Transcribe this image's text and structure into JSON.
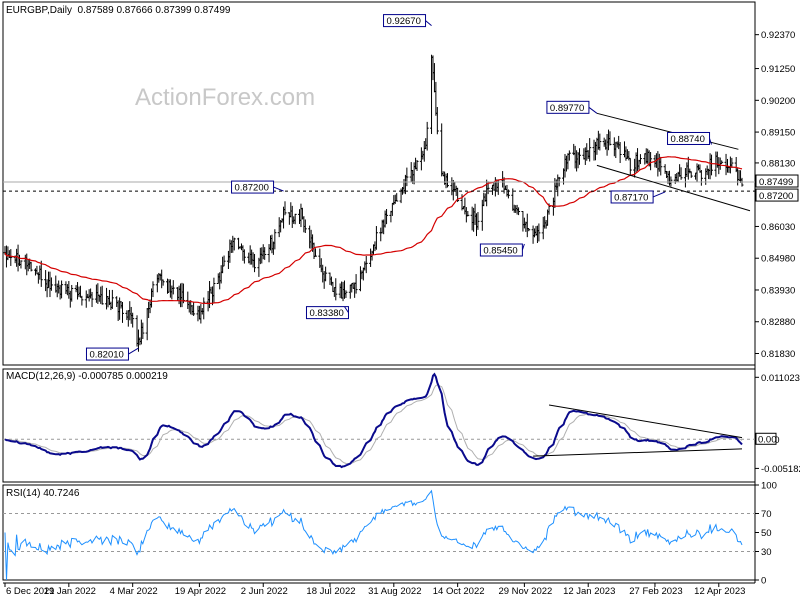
{
  "chart_data": [
    {
      "type": "candlestick",
      "title": "EURGBP,Daily",
      "ohlc_header": "0.87589 0.87666 0.87399 0.87499",
      "watermark": "ActionForex.com",
      "ylim": [
        0.8145,
        0.9345
      ],
      "y_ticks": [
        "0.92370",
        "0.91250",
        "0.90200",
        "0.89150",
        "0.88130",
        "0.87080",
        "0.86030",
        "0.84980",
        "0.83930",
        "0.82880",
        "0.81830"
      ],
      "x_ticks": [
        "6 Dec 2021",
        "19 Jan 2022",
        "4 Mar 2022",
        "19 Apr 2022",
        "2 Jun 2022",
        "18 Jul 2022",
        "31 Aug 2022",
        "14 Oct 2022",
        "29 Nov 2022",
        "12 Jan 2023",
        "27 Feb 2023",
        "12 Apr 2023"
      ],
      "current_price": "0.87499",
      "horizontal_level": "0.87200",
      "price_path": [
        {
          "date": "2021-12-06",
          "close": 0.852
        },
        {
          "date": "2021-12-20",
          "close": 0.849
        },
        {
          "date": "2022-01-05",
          "close": 0.841
        },
        {
          "date": "2022-01-19",
          "close": 0.838
        },
        {
          "date": "2022-02-01",
          "close": 0.838
        },
        {
          "date": "2022-02-15",
          "close": 0.836
        },
        {
          "date": "2022-03-01",
          "close": 0.832
        },
        {
          "date": "2022-03-08",
          "close": 0.822
        },
        {
          "date": "2022-03-20",
          "close": 0.843
        },
        {
          "date": "2022-04-05",
          "close": 0.838
        },
        {
          "date": "2022-04-19",
          "close": 0.831
        },
        {
          "date": "2022-05-01",
          "close": 0.842
        },
        {
          "date": "2022-05-12",
          "close": 0.856
        },
        {
          "date": "2022-05-26",
          "close": 0.848
        },
        {
          "date": "2022-06-08",
          "close": 0.855
        },
        {
          "date": "2022-06-16",
          "close": 0.864
        },
        {
          "date": "2022-06-28",
          "close": 0.864
        },
        {
          "date": "2022-07-10",
          "close": 0.848
        },
        {
          "date": "2022-07-20",
          "close": 0.839
        },
        {
          "date": "2022-07-28",
          "close": 0.838
        },
        {
          "date": "2022-08-08",
          "close": 0.843
        },
        {
          "date": "2022-08-18",
          "close": 0.855
        },
        {
          "date": "2022-08-26",
          "close": 0.865
        },
        {
          "date": "2022-09-05",
          "close": 0.872
        },
        {
          "date": "2022-09-22",
          "close": 0.886
        },
        {
          "date": "2022-09-26",
          "close": 0.915
        },
        {
          "date": "2022-10-03",
          "close": 0.877
        },
        {
          "date": "2022-10-12",
          "close": 0.872
        },
        {
          "date": "2022-10-20",
          "close": 0.866
        },
        {
          "date": "2022-10-27",
          "close": 0.862
        },
        {
          "date": "2022-11-05",
          "close": 0.874
        },
        {
          "date": "2022-11-15",
          "close": 0.874
        },
        {
          "date": "2022-11-22",
          "close": 0.866
        },
        {
          "date": "2022-11-29",
          "close": 0.862
        },
        {
          "date": "2022-12-05",
          "close": 0.858
        },
        {
          "date": "2022-12-12",
          "close": 0.86
        },
        {
          "date": "2022-12-20",
          "close": 0.872
        },
        {
          "date": "2022-12-30",
          "close": 0.884
        },
        {
          "date": "2023-01-10",
          "close": 0.883
        },
        {
          "date": "2023-01-20",
          "close": 0.888
        },
        {
          "date": "2023-02-01",
          "close": 0.887
        },
        {
          "date": "2023-02-10",
          "close": 0.88
        },
        {
          "date": "2023-02-20",
          "close": 0.884
        },
        {
          "date": "2023-03-01",
          "close": 0.88
        },
        {
          "date": "2023-03-10",
          "close": 0.875
        },
        {
          "date": "2023-03-20",
          "close": 0.879
        },
        {
          "date": "2023-03-30",
          "close": 0.878
        },
        {
          "date": "2023-04-10",
          "close": 0.882
        },
        {
          "date": "2023-04-20",
          "close": 0.881
        },
        {
          "date": "2023-04-27",
          "close": 0.875
        }
      ],
      "annotations": [
        {
          "label": "0.92670",
          "date": "2022-09-26",
          "value": 0.9267
        },
        {
          "label": "0.89770",
          "date": "2023-01-18",
          "value": 0.8977
        },
        {
          "label": "0.88740",
          "date": "2023-04-07",
          "value": 0.8874
        },
        {
          "label": "0.87200",
          "date": "2022-06-16",
          "value": 0.872
        },
        {
          "label": "0.87170",
          "date": "2023-03-06",
          "value": 0.8717
        },
        {
          "label": "0.85450",
          "date": "2022-11-29",
          "value": 0.8545
        },
        {
          "label": "0.83380",
          "date": "2022-07-28",
          "value": 0.8338
        },
        {
          "label": "0.82010",
          "date": "2022-03-08",
          "value": 0.8201
        }
      ]
    },
    {
      "type": "line",
      "title": "MACD(12,26,9) -0.000785 0.000219",
      "ylim": [
        -0.0076,
        0.0125
      ],
      "y_ticks": [
        "0.011023",
        "0.00",
        "-0.005182"
      ],
      "current_value": "0.00"
    },
    {
      "type": "line",
      "title": "RSI(14) 40.7246",
      "ylim": [
        0,
        100
      ],
      "y_ticks": [
        "100",
        "70",
        "50",
        "30",
        "0"
      ]
    }
  ]
}
